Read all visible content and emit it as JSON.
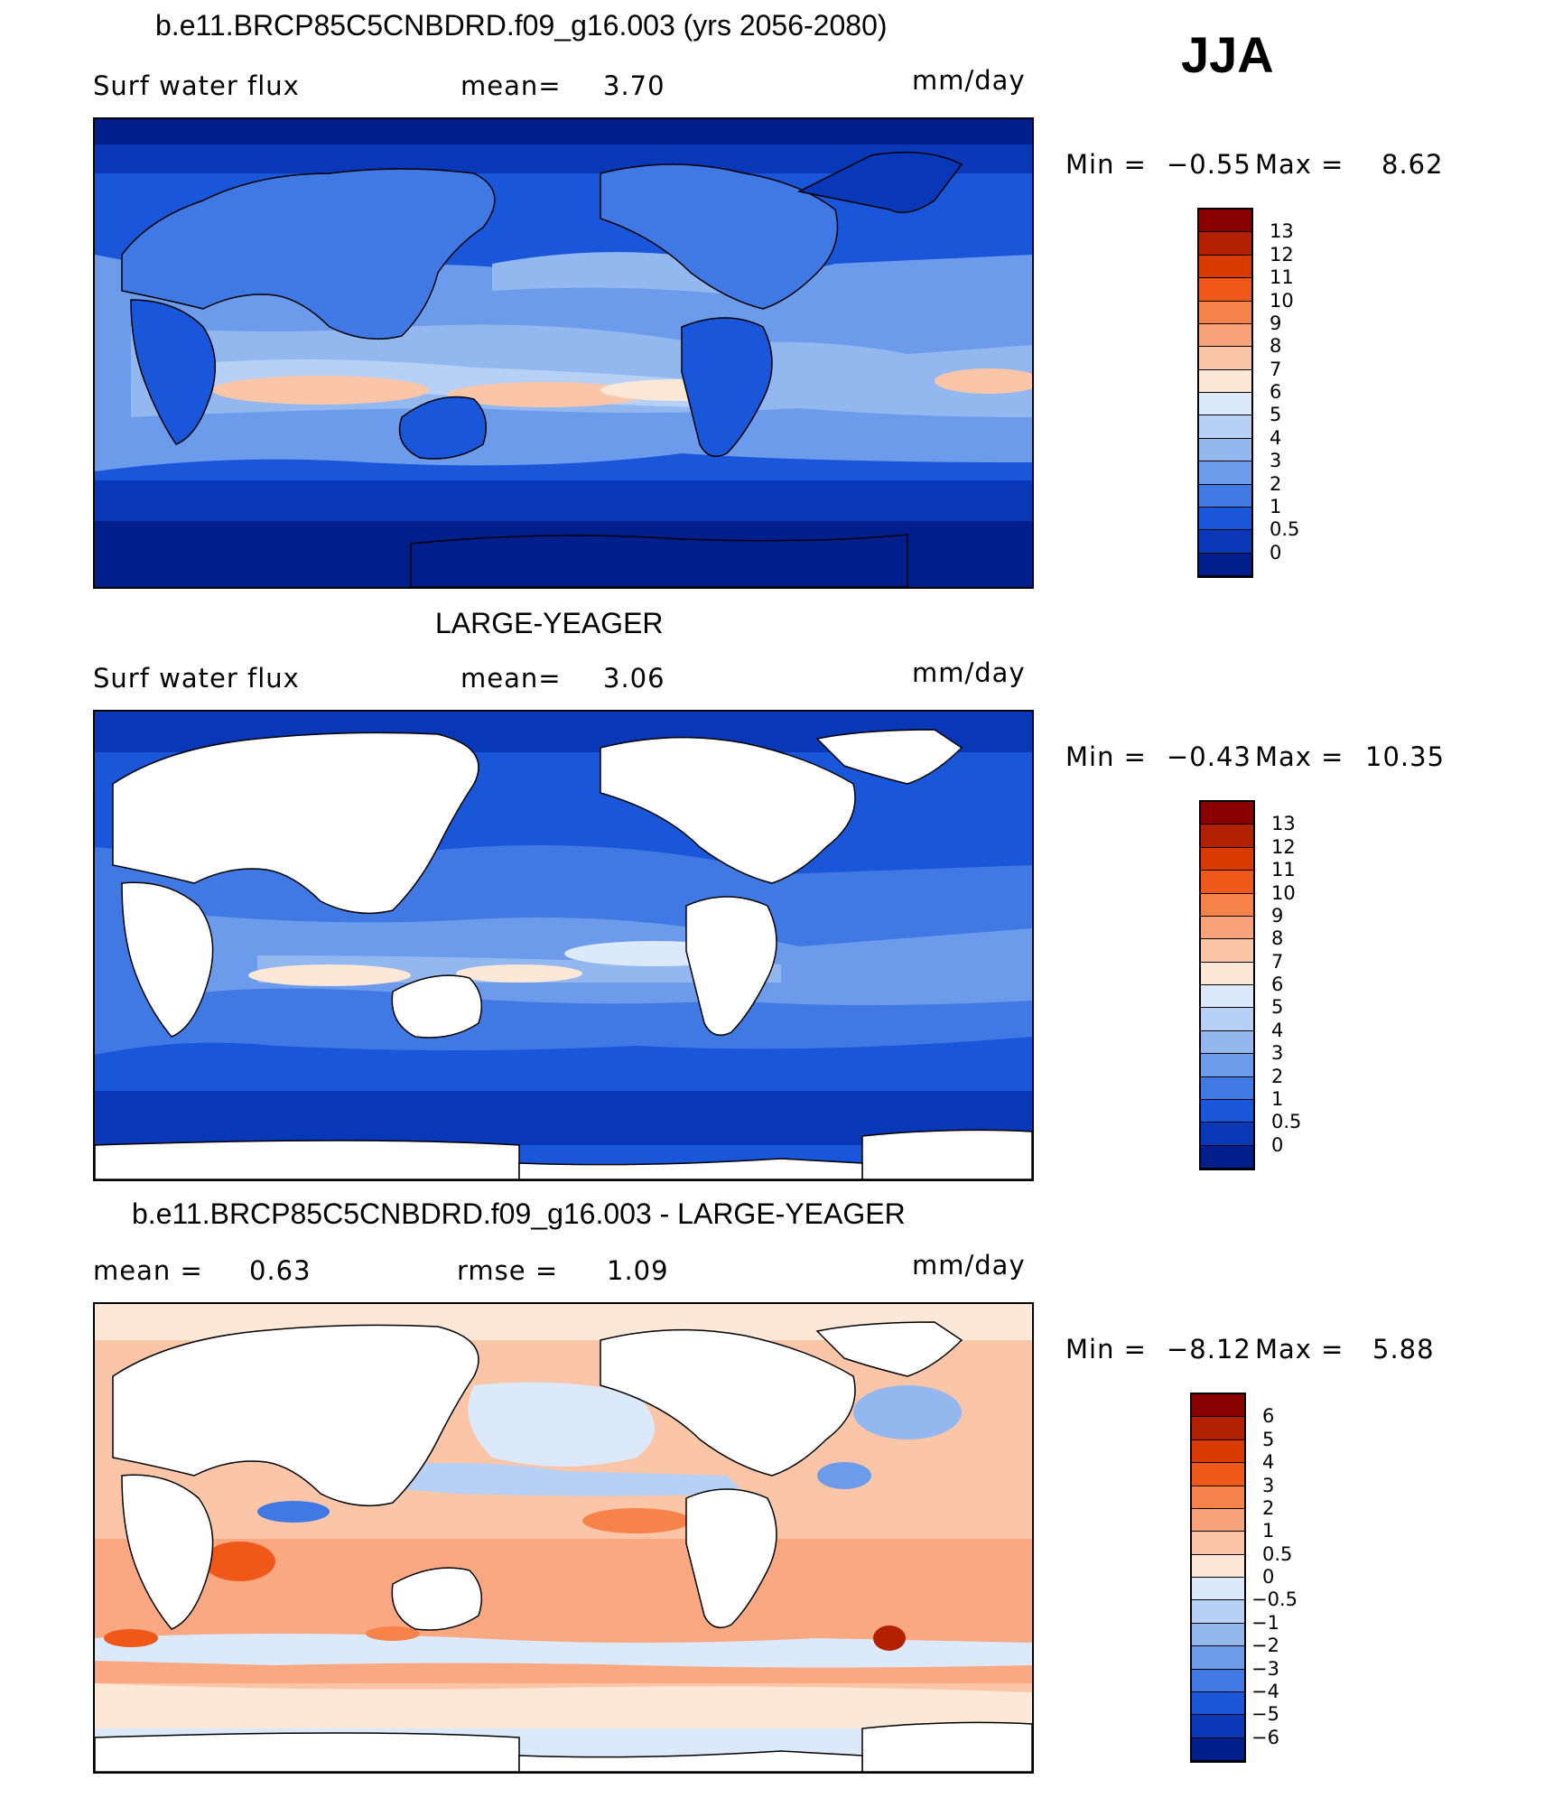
{
  "season": "JJA",
  "panels": [
    {
      "title": "b.e11.BRCP85C5CNBDRD.f09_g16.003 (yrs 2056-2080)",
      "left_label": "Surf water flux",
      "mid_label": "mean=",
      "mid_value": "3.70",
      "right_label": "",
      "right_value": "",
      "units": "mm/day",
      "min_label": "Min =",
      "min_value": "−0.55",
      "max_label": "Max =",
      "max_value": "8.62",
      "legend_labels": [
        "13",
        "12",
        "11",
        "10",
        "9",
        "8",
        "7",
        "6",
        "5",
        "4",
        "3",
        "2",
        "1",
        "0.5",
        "0"
      ],
      "legend_colors": [
        "#8b0000",
        "#b22000",
        "#d83a00",
        "#f0581a",
        "#f7834a",
        "#f9a27a",
        "#fbc5a7",
        "#fde7d6",
        "#dbe9fa",
        "#b7d1f6",
        "#93b8f0",
        "#6b9bea",
        "#4079e3",
        "#1a56d9",
        "#0838b8",
        "#001f8c"
      ]
    },
    {
      "title": "LARGE-YEAGER",
      "left_label": "Surf water flux",
      "mid_label": "mean=",
      "mid_value": "3.06",
      "right_label": "",
      "right_value": "",
      "units": "mm/day",
      "min_label": "Min =",
      "min_value": "−0.43",
      "max_label": "Max =",
      "max_value": "10.35",
      "legend_labels": [
        "13",
        "12",
        "11",
        "10",
        "9",
        "8",
        "7",
        "6",
        "5",
        "4",
        "3",
        "2",
        "1",
        "0.5",
        "0"
      ],
      "legend_colors": [
        "#8b0000",
        "#b22000",
        "#d83a00",
        "#f0581a",
        "#f7834a",
        "#f9a27a",
        "#fbc5a7",
        "#fde7d6",
        "#dbe9fa",
        "#b7d1f6",
        "#93b8f0",
        "#6b9bea",
        "#4079e3",
        "#1a56d9",
        "#0838b8",
        "#001f8c"
      ]
    },
    {
      "title": "b.e11.BRCP85C5CNBDRD.f09_g16.003 - LARGE-YEAGER",
      "left_label": "mean =",
      "left_value": "0.63",
      "mid_label": "rmse =",
      "mid_value": "1.09",
      "units": "mm/day",
      "min_label": "Min =",
      "min_value": "−8.12",
      "max_label": "Max =",
      "max_value": "5.88",
      "legend_labels": [
        "6",
        "5",
        "4",
        "3",
        "2",
        "1",
        "0.5",
        "0",
        "−0.5",
        "−1",
        "−2",
        "−3",
        "−4",
        "−5",
        "−6"
      ],
      "legend_colors": [
        "#8b0000",
        "#b22000",
        "#d83a00",
        "#f0581a",
        "#f7834a",
        "#f9a27a",
        "#fbc5a7",
        "#fde7d6",
        "#dbe9fa",
        "#b7d1f6",
        "#93b8f0",
        "#6b9bea",
        "#4079e3",
        "#1a56d9",
        "#0838b8",
        "#001f8c"
      ]
    }
  ]
}
